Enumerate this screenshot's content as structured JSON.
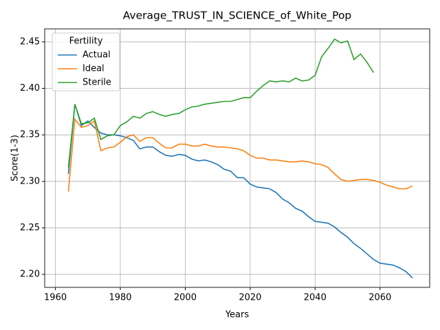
{
  "chart_data": {
    "type": "line",
    "title": "Average_TRUST_IN_SCIENCE_of_White_Pop",
    "x_label": "Years",
    "y_label": "Score(1-3)",
    "legend_title": "Fertility",
    "legend_position": "upper left",
    "grid": true,
    "x": [
      1964,
      1966,
      1968,
      1970,
      1972,
      1974,
      1976,
      1978,
      1980,
      1982,
      1984,
      1986,
      1988,
      1990,
      1992,
      1994,
      1996,
      1998,
      2000,
      2002,
      2004,
      2006,
      2008,
      2010,
      2012,
      2014,
      2016,
      2018,
      2020,
      2022,
      2024,
      2026,
      2028,
      2030,
      2032,
      2034,
      2036,
      2038,
      2040,
      2042,
      2044,
      2046,
      2048,
      2050,
      2052,
      2054,
      2056,
      2058,
      2060,
      2062,
      2064,
      2066,
      2068,
      2070
    ],
    "series": [
      {
        "name": "Actual",
        "color": "#1f77b4",
        "values": [
          2.308,
          2.383,
          2.36,
          2.365,
          2.358,
          2.352,
          2.35,
          2.35,
          2.349,
          2.347,
          2.344,
          2.335,
          2.337,
          2.337,
          2.332,
          2.328,
          2.327,
          2.329,
          2.328,
          2.324,
          2.322,
          2.323,
          2.321,
          2.318,
          2.313,
          2.311,
          2.304,
          2.304,
          2.297,
          2.294,
          2.293,
          2.292,
          2.288,
          2.281,
          2.277,
          2.271,
          2.268,
          2.262,
          2.257,
          2.256,
          2.255,
          2.251,
          2.245,
          2.24,
          2.233,
          2.228,
          2.222,
          2.216,
          2.212,
          2.211,
          2.21,
          2.207,
          2.203,
          2.196
        ]
      },
      {
        "name": "Ideal",
        "color": "#ff7f0e",
        "values": [
          2.289,
          2.367,
          2.358,
          2.36,
          2.365,
          2.333,
          2.336,
          2.337,
          2.342,
          2.348,
          2.35,
          2.343,
          2.347,
          2.347,
          2.341,
          2.336,
          2.336,
          2.34,
          2.34,
          2.338,
          2.338,
          2.34,
          2.338,
          2.337,
          2.337,
          2.336,
          2.335,
          2.333,
          2.328,
          2.325,
          2.325,
          2.323,
          2.323,
          2.322,
          2.321,
          2.321,
          2.322,
          2.321,
          2.319,
          2.318,
          2.315,
          2.308,
          2.302,
          2.3,
          2.301,
          2.302,
          2.302,
          2.301,
          2.299,
          2.296,
          2.294,
          2.292,
          2.292,
          2.295
        ]
      },
      {
        "name": "Sterile",
        "color": "#2ca02c",
        "values": [
          2.315,
          2.383,
          2.362,
          2.363,
          2.368,
          2.345,
          2.349,
          2.35,
          2.36,
          2.364,
          2.37,
          2.368,
          2.373,
          2.375,
          2.372,
          2.37,
          2.372,
          2.373,
          2.377,
          2.38,
          2.381,
          2.383,
          2.384,
          2.385,
          2.386,
          2.386,
          2.388,
          2.39,
          2.39,
          2.397,
          2.403,
          2.408,
          2.407,
          2.408,
          2.407,
          2.411,
          2.408,
          2.409,
          2.414,
          2.434,
          2.443,
          2.453,
          2.449,
          2.451,
          2.431,
          2.437,
          2.428,
          2.417,
          null,
          null,
          null,
          null,
          null,
          null
        ]
      }
    ],
    "xlim": [
      1956.7,
      2075.3
    ],
    "xticks": [
      1960,
      1980,
      2000,
      2020,
      2040,
      2060
    ],
    "ylim": [
      2.186,
      2.464
    ],
    "yticks": [
      {
        "value": 2.2,
        "label": "2.20"
      },
      2.25,
      {
        "value": 2.3,
        "label": "2.30"
      },
      2.35,
      {
        "value": 2.4,
        "label": "2.40"
      },
      2.45
    ]
  }
}
